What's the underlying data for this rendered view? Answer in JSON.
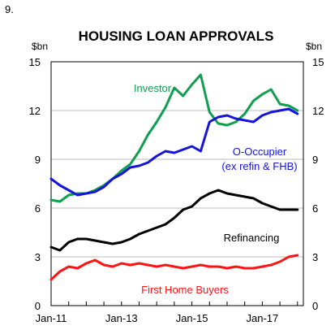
{
  "figure_number": "9.",
  "chart_data": {
    "type": "line",
    "title": "HOUSING LOAN APPROVALS",
    "ylabel_left": "$bn",
    "ylabel_right": "$bn",
    "ylim": [
      0,
      15
    ],
    "yticks": [
      0,
      3,
      6,
      9,
      12,
      15
    ],
    "xlim": [
      "2011-01",
      "2018-03"
    ],
    "xticks": [
      "Jan-11",
      "Jan-13",
      "Jan-15",
      "Jan-17"
    ],
    "grid": "horizontal",
    "colors": {
      "Investor": "#0f9f4f",
      "O-Occupier": "#1414dc",
      "Refinancing": "#000000",
      "First Home Buyers": "#ff1414"
    },
    "series": [
      {
        "name": "Investor",
        "label": "Investor",
        "x": [
          "2011-01",
          "2011-04",
          "2011-07",
          "2011-10",
          "2012-01",
          "2012-04",
          "2012-07",
          "2012-10",
          "2013-01",
          "2013-04",
          "2013-07",
          "2013-10",
          "2014-01",
          "2014-04",
          "2014-07",
          "2014-10",
          "2015-01",
          "2015-04",
          "2015-07",
          "2015-10",
          "2016-01",
          "2016-04",
          "2016-07",
          "2016-10",
          "2017-01",
          "2017-04",
          "2017-07",
          "2017-10",
          "2018-01"
        ],
        "values": [
          6.5,
          6.4,
          6.8,
          6.9,
          6.9,
          7.1,
          7.4,
          7.8,
          8.3,
          8.7,
          9.5,
          10.5,
          11.3,
          12.2,
          13.4,
          12.9,
          13.6,
          14.2,
          11.9,
          11.2,
          11.1,
          11.3,
          11.8,
          12.6,
          13.0,
          13.3,
          12.4,
          12.3,
          12.0
        ]
      },
      {
        "name": "O-Occupier",
        "label": "O-Occupier (ex refin & FHB)",
        "x": [
          "2011-01",
          "2011-04",
          "2011-07",
          "2011-10",
          "2012-01",
          "2012-04",
          "2012-07",
          "2012-10",
          "2013-01",
          "2013-04",
          "2013-07",
          "2013-10",
          "2014-01",
          "2014-04",
          "2014-07",
          "2014-10",
          "2015-01",
          "2015-04",
          "2015-07",
          "2015-10",
          "2016-01",
          "2016-04",
          "2016-07",
          "2016-10",
          "2017-01",
          "2017-04",
          "2017-07",
          "2017-10",
          "2018-01"
        ],
        "values": [
          7.8,
          7.4,
          7.1,
          6.8,
          6.9,
          7.0,
          7.3,
          7.8,
          8.1,
          8.5,
          8.6,
          8.8,
          9.2,
          9.5,
          9.4,
          9.6,
          9.8,
          9.5,
          11.3,
          11.6,
          11.7,
          11.5,
          11.4,
          11.3,
          11.7,
          11.9,
          12.0,
          12.1,
          11.8
        ]
      },
      {
        "name": "Refinancing",
        "label": "Refinancing",
        "x": [
          "2011-01",
          "2011-04",
          "2011-07",
          "2011-10",
          "2012-01",
          "2012-04",
          "2012-07",
          "2012-10",
          "2013-01",
          "2013-04",
          "2013-07",
          "2013-10",
          "2014-01",
          "2014-04",
          "2014-07",
          "2014-10",
          "2015-01",
          "2015-04",
          "2015-07",
          "2015-10",
          "2016-01",
          "2016-04",
          "2016-07",
          "2016-10",
          "2017-01",
          "2017-04",
          "2017-07",
          "2017-10",
          "2018-01"
        ],
        "values": [
          3.6,
          3.4,
          3.9,
          4.1,
          4.1,
          4.0,
          3.9,
          3.8,
          3.9,
          4.1,
          4.4,
          4.6,
          4.8,
          5.0,
          5.4,
          5.9,
          6.1,
          6.6,
          6.9,
          7.1,
          6.9,
          6.8,
          6.7,
          6.6,
          6.3,
          6.1,
          5.9,
          5.9,
          5.9
        ]
      },
      {
        "name": "First Home Buyers",
        "label": "First Home Buyers",
        "x": [
          "2011-01",
          "2011-04",
          "2011-07",
          "2011-10",
          "2012-01",
          "2012-04",
          "2012-07",
          "2012-10",
          "2013-01",
          "2013-04",
          "2013-07",
          "2013-10",
          "2014-01",
          "2014-04",
          "2014-07",
          "2014-10",
          "2015-01",
          "2015-04",
          "2015-07",
          "2015-10",
          "2016-01",
          "2016-04",
          "2016-07",
          "2016-10",
          "2017-01",
          "2017-04",
          "2017-07",
          "2017-10",
          "2018-01"
        ],
        "values": [
          1.6,
          2.1,
          2.4,
          2.3,
          2.6,
          2.8,
          2.5,
          2.4,
          2.6,
          2.5,
          2.6,
          2.5,
          2.4,
          2.5,
          2.4,
          2.3,
          2.4,
          2.5,
          2.4,
          2.4,
          2.3,
          2.4,
          2.3,
          2.3,
          2.4,
          2.5,
          2.7,
          3.0,
          3.1
        ]
      }
    ]
  }
}
